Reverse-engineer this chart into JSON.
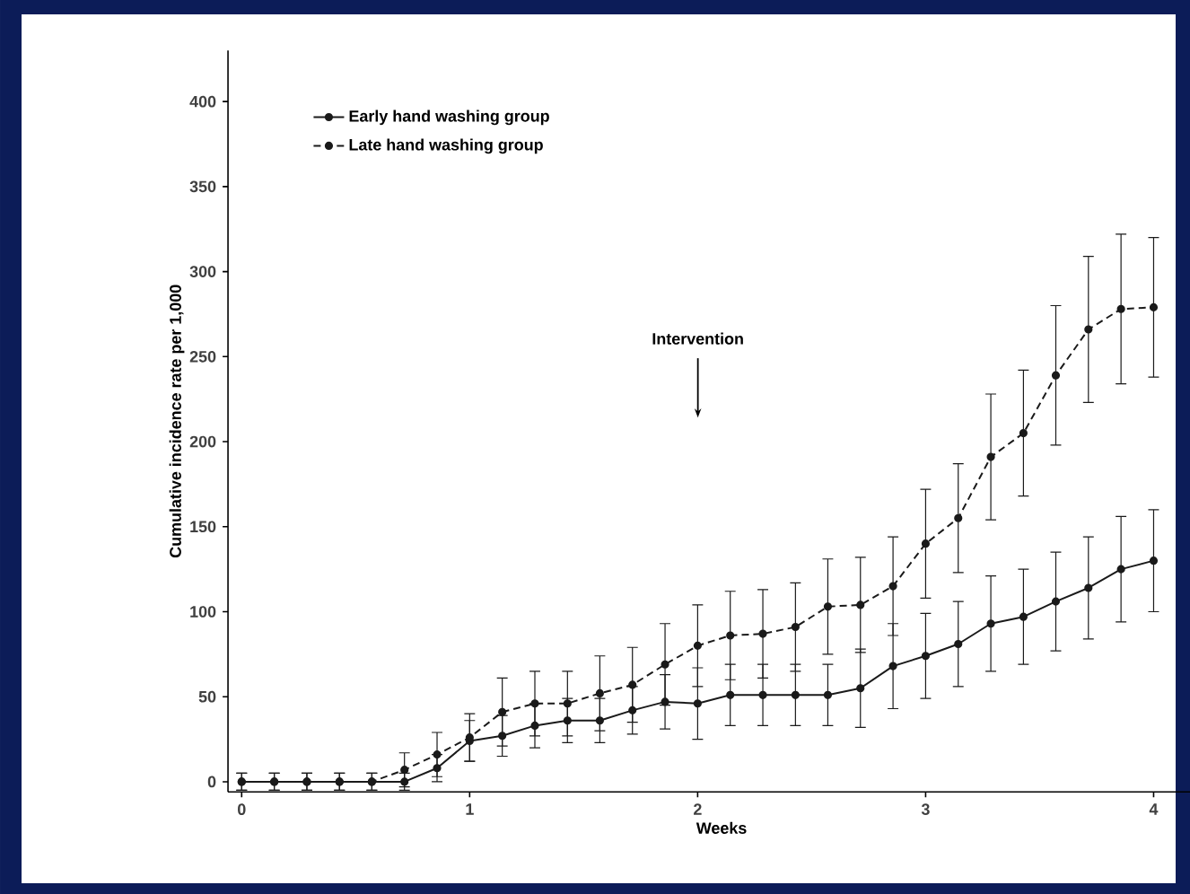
{
  "chart_data": {
    "type": "line",
    "xlabel": "Weeks",
    "ylabel": "Cumulative incidence rate per 1,000",
    "xlim": [
      -0.06,
      4.27
    ],
    "ylim": [
      -6,
      430
    ],
    "xticks": [
      0,
      1,
      2,
      3,
      4
    ],
    "yticks": [
      0,
      50,
      100,
      150,
      200,
      250,
      300,
      350,
      400
    ],
    "legend": "top left",
    "marker": "circle",
    "grid": false,
    "x": [
      0,
      0.143,
      0.286,
      0.429,
      0.571,
      0.714,
      0.857,
      1,
      1.143,
      1.286,
      1.429,
      1.571,
      1.714,
      1.857,
      2,
      2.143,
      2.286,
      2.429,
      2.571,
      2.714,
      2.857,
      3,
      3.143,
      3.286,
      3.429,
      3.571,
      3.714,
      3.857,
      4
    ],
    "series": [
      {
        "name": "Early hand washing group",
        "color": "#1a1a1a",
        "line_style": "solid",
        "values": [
          0,
          0,
          0,
          0,
          0,
          0,
          8,
          24,
          27,
          33,
          36,
          36,
          42,
          47,
          46,
          51,
          51,
          51,
          51,
          55,
          68,
          74,
          81,
          93,
          97,
          106,
          114,
          125,
          130
        ],
        "errors": [
          5,
          5,
          5,
          5,
          5,
          5,
          8,
          12,
          12,
          13,
          13,
          13,
          14,
          16,
          21,
          18,
          18,
          18,
          18,
          23,
          25,
          25,
          25,
          28,
          28,
          29,
          30,
          31,
          30
        ]
      },
      {
        "name": "Late hand washing group",
        "color": "#1a1a1a",
        "line_style": "dashed",
        "values": [
          0,
          0,
          0,
          0,
          0,
          7,
          16,
          26,
          41,
          46,
          46,
          52,
          57,
          69,
          80,
          86,
          87,
          91,
          103,
          104,
          115,
          140,
          155,
          191,
          205,
          239,
          266,
          278,
          279
        ],
        "errors": [
          5,
          5,
          5,
          5,
          5,
          10,
          13,
          14,
          20,
          19,
          19,
          22,
          22,
          24,
          24,
          26,
          26,
          26,
          28,
          28,
          29,
          32,
          32,
          37,
          37,
          41,
          43,
          44,
          41
        ]
      }
    ],
    "annotations": [
      "Intervention"
    ]
  }
}
